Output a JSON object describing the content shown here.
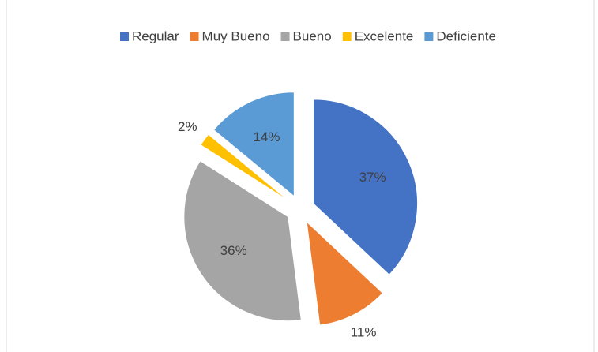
{
  "chart_data": {
    "type": "pie",
    "categories": [
      "Regular",
      "Muy Bueno",
      "Bueno",
      "Excelente",
      "Deficiente"
    ],
    "values": [
      37,
      11,
      36,
      2,
      14
    ],
    "value_labels": [
      "37%",
      "11%",
      "36%",
      "2%",
      "14%"
    ],
    "colors": [
      "#4472c4",
      "#ed7d31",
      "#a5a5a5",
      "#ffc000",
      "#5b9bd5"
    ],
    "legend": "top"
  }
}
